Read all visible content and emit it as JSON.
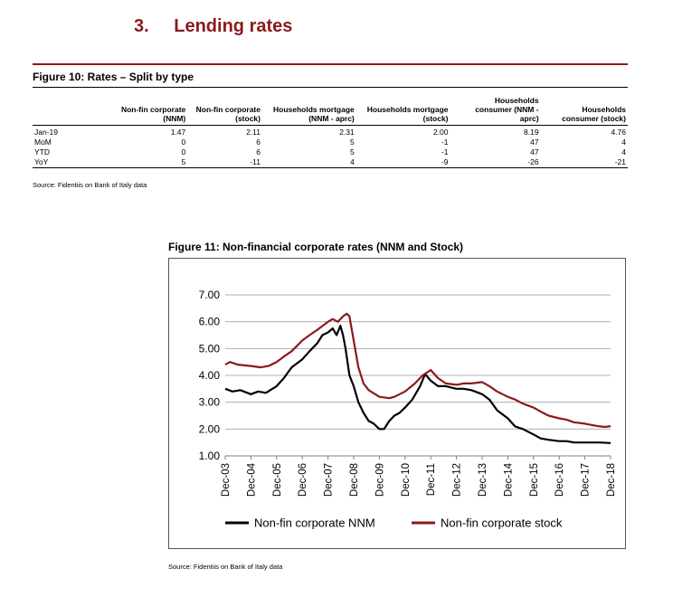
{
  "section": {
    "number": "3.",
    "title": "Lending rates"
  },
  "figure10": {
    "title": "Figure 10: Rates – Split by type",
    "headers": [
      [
        "Non-fin corporate",
        "(NNM)"
      ],
      [
        "Non-fin corporate",
        "(stock)"
      ],
      [
        "Households mortgage",
        "(NNM - aprc)"
      ],
      [
        "Households mortgage",
        "(stock)"
      ],
      [
        "Households",
        "consumer (NNM -",
        "aprc)"
      ],
      [
        "Households",
        "consumer (stock)"
      ]
    ],
    "rows": [
      {
        "label": "Jan-19",
        "values": [
          "1.47",
          "2.11",
          "2.31",
          "2.00",
          "8.19",
          "4.76"
        ]
      },
      {
        "label": "MoM",
        "values": [
          "0",
          "6",
          "5",
          "-1",
          "47",
          "4"
        ]
      },
      {
        "label": "YTD",
        "values": [
          "0",
          "6",
          "5",
          "-1",
          "47",
          "4"
        ]
      },
      {
        "label": "YoY",
        "values": [
          "5",
          "-11",
          "4",
          "-9",
          "-26",
          "-21"
        ]
      }
    ],
    "source": "Source: Fidentiis on Bank of Italy data"
  },
  "figure11": {
    "title": "Figure 11: Non-financial corporate rates (NNM and Stock)",
    "source": "Source: Fidentiis on Bank of Italy data"
  },
  "chart_data": {
    "type": "line",
    "title": "Figure 11: Non-financial corporate rates (NNM and Stock)",
    "xlabel": "",
    "ylabel": "",
    "ylim": [
      1.0,
      7.0
    ],
    "yticks": [
      "1.00",
      "2.00",
      "3.00",
      "4.00",
      "5.00",
      "6.00",
      "7.00"
    ],
    "xlim": [
      2003.917,
      2018.917
    ],
    "xticks": [
      "Dec-03",
      "Dec-04",
      "Dec-05",
      "Dec-06",
      "Dec-07",
      "Dec-08",
      "Dec-09",
      "Dec-10",
      "Dec-11",
      "Dec-12",
      "Dec-13",
      "Dec-14",
      "Dec-15",
      "Dec-16",
      "Dec-17",
      "Dec-18"
    ],
    "grid": true,
    "legend_position": "bottom",
    "series": [
      {
        "name": "Non-fin corporate NNM",
        "color": "#000000",
        "points": [
          [
            2003.917,
            3.5
          ],
          [
            2004.2,
            3.4
          ],
          [
            2004.5,
            3.45
          ],
          [
            2004.917,
            3.3
          ],
          [
            2005.2,
            3.4
          ],
          [
            2005.5,
            3.35
          ],
          [
            2005.917,
            3.6
          ],
          [
            2006.2,
            3.9
          ],
          [
            2006.5,
            4.3
          ],
          [
            2006.917,
            4.6
          ],
          [
            2007.2,
            4.9
          ],
          [
            2007.5,
            5.2
          ],
          [
            2007.7,
            5.5
          ],
          [
            2007.917,
            5.6
          ],
          [
            2008.1,
            5.75
          ],
          [
            2008.25,
            5.5
          ],
          [
            2008.4,
            5.85
          ],
          [
            2008.5,
            5.5
          ],
          [
            2008.6,
            5.0
          ],
          [
            2008.75,
            4.0
          ],
          [
            2008.917,
            3.6
          ],
          [
            2009.1,
            3.0
          ],
          [
            2009.3,
            2.6
          ],
          [
            2009.5,
            2.3
          ],
          [
            2009.7,
            2.2
          ],
          [
            2009.917,
            2.0
          ],
          [
            2010.1,
            2.0
          ],
          [
            2010.3,
            2.3
          ],
          [
            2010.5,
            2.5
          ],
          [
            2010.7,
            2.6
          ],
          [
            2010.917,
            2.8
          ],
          [
            2011.2,
            3.1
          ],
          [
            2011.5,
            3.6
          ],
          [
            2011.7,
            4.05
          ],
          [
            2011.917,
            3.8
          ],
          [
            2012.2,
            3.6
          ],
          [
            2012.5,
            3.6
          ],
          [
            2012.917,
            3.5
          ],
          [
            2013.2,
            3.5
          ],
          [
            2013.5,
            3.45
          ],
          [
            2013.917,
            3.3
          ],
          [
            2014.2,
            3.1
          ],
          [
            2014.5,
            2.7
          ],
          [
            2014.917,
            2.4
          ],
          [
            2015.2,
            2.1
          ],
          [
            2015.5,
            2.0
          ],
          [
            2015.917,
            1.8
          ],
          [
            2016.2,
            1.65
          ],
          [
            2016.5,
            1.6
          ],
          [
            2016.917,
            1.55
          ],
          [
            2017.2,
            1.55
          ],
          [
            2017.5,
            1.5
          ],
          [
            2017.917,
            1.5
          ],
          [
            2018.2,
            1.5
          ],
          [
            2018.5,
            1.5
          ],
          [
            2018.917,
            1.48
          ]
        ]
      },
      {
        "name": "Non-fin corporate stock",
        "color": "#8b1a1a",
        "points": [
          [
            2003.917,
            4.4
          ],
          [
            2004.1,
            4.5
          ],
          [
            2004.4,
            4.4
          ],
          [
            2004.917,
            4.35
          ],
          [
            2005.3,
            4.3
          ],
          [
            2005.6,
            4.35
          ],
          [
            2005.917,
            4.5
          ],
          [
            2006.2,
            4.7
          ],
          [
            2006.5,
            4.9
          ],
          [
            2006.917,
            5.3
          ],
          [
            2007.2,
            5.5
          ],
          [
            2007.5,
            5.7
          ],
          [
            2007.917,
            6.0
          ],
          [
            2008.1,
            6.1
          ],
          [
            2008.3,
            6.0
          ],
          [
            2008.5,
            6.2
          ],
          [
            2008.65,
            6.3
          ],
          [
            2008.75,
            6.2
          ],
          [
            2008.917,
            5.3
          ],
          [
            2009.1,
            4.3
          ],
          [
            2009.3,
            3.7
          ],
          [
            2009.5,
            3.45
          ],
          [
            2009.917,
            3.2
          ],
          [
            2010.3,
            3.15
          ],
          [
            2010.5,
            3.2
          ],
          [
            2010.917,
            3.4
          ],
          [
            2011.3,
            3.7
          ],
          [
            2011.6,
            4.0
          ],
          [
            2011.917,
            4.2
          ],
          [
            2012.2,
            3.9
          ],
          [
            2012.5,
            3.7
          ],
          [
            2012.917,
            3.65
          ],
          [
            2013.2,
            3.7
          ],
          [
            2013.5,
            3.7
          ],
          [
            2013.917,
            3.75
          ],
          [
            2014.2,
            3.6
          ],
          [
            2014.5,
            3.4
          ],
          [
            2014.917,
            3.2
          ],
          [
            2015.2,
            3.1
          ],
          [
            2015.5,
            2.95
          ],
          [
            2015.917,
            2.8
          ],
          [
            2016.2,
            2.65
          ],
          [
            2016.5,
            2.5
          ],
          [
            2016.917,
            2.4
          ],
          [
            2017.2,
            2.35
          ],
          [
            2017.5,
            2.25
          ],
          [
            2017.917,
            2.2
          ],
          [
            2018.2,
            2.15
          ],
          [
            2018.5,
            2.1
          ],
          [
            2018.7,
            2.08
          ],
          [
            2018.917,
            2.11
          ]
        ]
      }
    ]
  }
}
